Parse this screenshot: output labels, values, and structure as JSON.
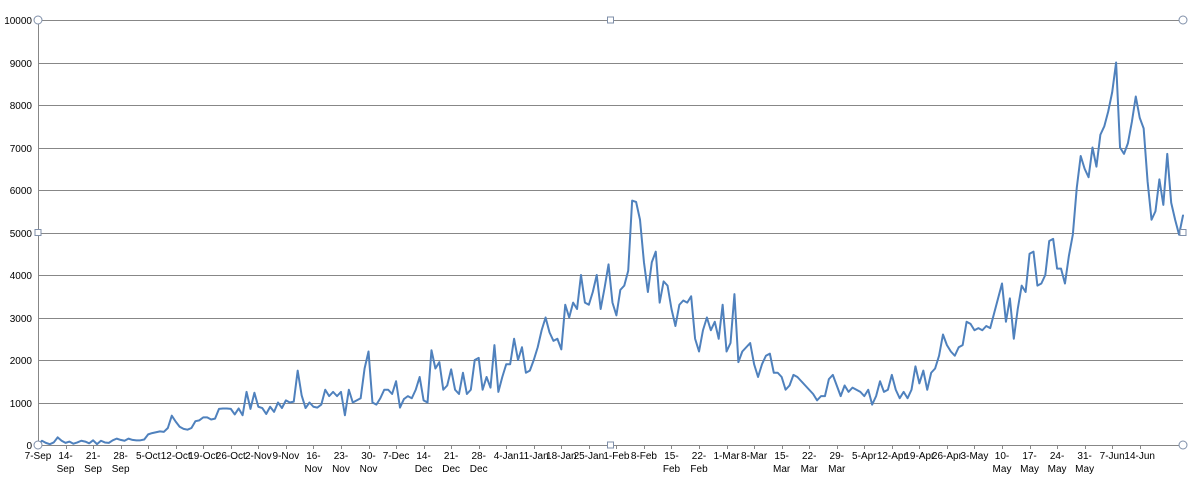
{
  "chart_data": {
    "type": "line",
    "title": "",
    "xlabel": "",
    "ylabel": "",
    "ylim": [
      0,
      10000
    ],
    "yticks": [
      0,
      1000,
      2000,
      3000,
      4000,
      5000,
      6000,
      7000,
      8000,
      9000,
      10000
    ],
    "grid": true,
    "legend": "none",
    "x_start": "7-Sep",
    "x_end": "14-Jun",
    "xtick_labels": [
      [
        "7-Sep"
      ],
      [
        "14-",
        "Sep"
      ],
      [
        "21-",
        "Sep"
      ],
      [
        "28-",
        "Sep"
      ],
      [
        "5-Oct"
      ],
      [
        "12-Oct"
      ],
      [
        "19-Oct"
      ],
      [
        "26-Oct"
      ],
      [
        "2-Nov"
      ],
      [
        "9-Nov"
      ],
      [
        "16-",
        "Nov"
      ],
      [
        "23-",
        "Nov"
      ],
      [
        "30-",
        "Nov"
      ],
      [
        "7-Dec"
      ],
      [
        "14-",
        "Dec"
      ],
      [
        "21-",
        "Dec"
      ],
      [
        "28-",
        "Dec"
      ],
      [
        "4-Jan"
      ],
      [
        "11-Jan"
      ],
      [
        "18-Jan"
      ],
      [
        "25-Jan"
      ],
      [
        "1-Feb"
      ],
      [
        "8-Feb"
      ],
      [
        "15-",
        "Feb"
      ],
      [
        "22-",
        "Feb"
      ],
      [
        "1-Mar"
      ],
      [
        "8-Mar"
      ],
      [
        "15-",
        "Mar"
      ],
      [
        "22-",
        "Mar"
      ],
      [
        "29-",
        "Mar"
      ],
      [
        "5-Apr"
      ],
      [
        "12-Apr"
      ],
      [
        "19-Apr"
      ],
      [
        "26-Apr"
      ],
      [
        "3-May"
      ],
      [
        "10-",
        "May"
      ],
      [
        "17-",
        "May"
      ],
      [
        "24-",
        "May"
      ],
      [
        "31-",
        "May"
      ],
      [
        "7-Jun"
      ],
      [
        "14-Jun"
      ]
    ],
    "series": [
      {
        "color": "#4f81bd",
        "step_days": 1,
        "values": [
          0,
          100,
          50,
          20,
          60,
          180,
          100,
          50,
          80,
          30,
          60,
          100,
          80,
          40,
          110,
          20,
          100,
          60,
          50,
          110,
          150,
          120,
          100,
          150,
          120,
          110,
          110,
          130,
          250,
          280,
          300,
          320,
          310,
          400,
          690,
          550,
          430,
          380,
          360,
          400,
          560,
          580,
          650,
          650,
          600,
          620,
          850,
          860,
          860,
          850,
          720,
          860,
          700,
          1250,
          850,
          1230,
          900,
          870,
          730,
          900,
          780,
          1000,
          870,
          1050,
          1000,
          1020,
          1750,
          1170,
          870,
          1000,
          900,
          880,
          950,
          1300,
          1150,
          1250,
          1150,
          1250,
          700,
          1300,
          1000,
          1050,
          1100,
          1800,
          2200,
          1000,
          950,
          1100,
          1300,
          1300,
          1200,
          1500,
          880,
          1080,
          1150,
          1100,
          1300,
          1600,
          1050,
          1000,
          2230,
          1800,
          1950,
          1300,
          1400,
          1780,
          1300,
          1200,
          1700,
          1200,
          1300,
          2000,
          2050,
          1300,
          1600,
          1350,
          2350,
          1250,
          1600,
          1900,
          1900,
          2500,
          2000,
          2300,
          1700,
          1750,
          2000,
          2300,
          2700,
          3000,
          2650,
          2450,
          2500,
          2250,
          3300,
          3000,
          3350,
          3200,
          4000,
          3350,
          3300,
          3600,
          4000,
          3200,
          3700,
          4250,
          3350,
          3050,
          3650,
          3750,
          4100,
          5750,
          5720,
          5300,
          4300,
          3600,
          4300,
          4550,
          3350,
          3850,
          3750,
          3200,
          2800,
          3300,
          3400,
          3350,
          3500,
          2500,
          2200,
          2700,
          3000,
          2700,
          2900,
          2500,
          3300,
          2200,
          2400,
          3550,
          1950,
          2200,
          2300,
          2400,
          1900,
          1600,
          1900,
          2100,
          2150,
          1700,
          1700,
          1600,
          1300,
          1400,
          1650,
          1600,
          1500,
          1400,
          1300,
          1200,
          1050,
          1150,
          1150,
          1550,
          1650,
          1400,
          1150,
          1400,
          1250,
          1350,
          1300,
          1250,
          1150,
          1300,
          950,
          1150,
          1500,
          1250,
          1300,
          1650,
          1300,
          1100,
          1250,
          1100,
          1300,
          1850,
          1450,
          1750,
          1300,
          1700,
          1800,
          2100,
          2600,
          2350,
          2200,
          2100,
          2300,
          2350,
          2900,
          2850,
          2700,
          2750,
          2700,
          2800,
          2750,
          3100,
          3450,
          3800,
          2900,
          3450,
          2500,
          3200,
          3750,
          3600,
          4500,
          4550,
          3750,
          3800,
          4000,
          4800,
          4850,
          4150,
          4150,
          3800,
          4450,
          4950,
          6050,
          6800,
          6500,
          6300,
          7000,
          6550,
          7300,
          7500,
          7850,
          8300,
          9000,
          7000,
          6850,
          7100,
          7600,
          8200,
          7700,
          7450,
          6200,
          5300,
          5500,
          6250,
          5650,
          6850,
          5700,
          5300,
          4950,
          5400
        ]
      }
    ]
  }
}
